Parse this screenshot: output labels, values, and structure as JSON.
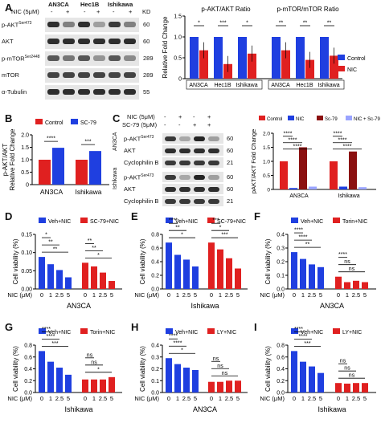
{
  "panels": {
    "A": "A",
    "B": "B",
    "C": "C",
    "D": "D",
    "E": "E",
    "F": "F",
    "G": "G",
    "H": "H",
    "I": "I"
  },
  "colors": {
    "blue": "#1f3fe0",
    "red": "#e02020",
    "dark_red": "#8b1010",
    "blot_bg": "#e6e6e6",
    "band": "#1a1a1a"
  },
  "blotA": {
    "treatment": "NIC (5μM)",
    "signs": [
      "-",
      "+",
      "-",
      "+",
      "-",
      "+"
    ],
    "lines": [
      "AN3CA",
      "Hec1B",
      "Ishikawa"
    ],
    "kd_header": "KD",
    "rows": [
      {
        "label": "p-AKT",
        "sup": "Ser473",
        "kd": "60"
      },
      {
        "label": "AKT",
        "sup": "",
        "kd": "60"
      },
      {
        "label": "p-mTOR",
        "sup": "Ser2448",
        "kd": "289"
      },
      {
        "label": "mTOR",
        "sup": "",
        "kd": "289"
      },
      {
        "label": "α-Tubulin",
        "sup": "",
        "kd": "55"
      }
    ]
  },
  "blotC": {
    "treatments": [
      {
        "label": "NIC (5μM)",
        "signs": [
          "-",
          "+",
          "-",
          "+"
        ]
      },
      {
        "label": "SC-79 (5μM)",
        "signs": [
          "-",
          "-",
          "+",
          "+"
        ]
      }
    ],
    "groups": [
      {
        "line": "AN3CA",
        "rows": [
          {
            "label": "p-AKT",
            "sup": "Ser473",
            "kd": "60"
          },
          {
            "label": "AKT",
            "sup": "",
            "kd": "60"
          },
          {
            "label": "Cyclophilin B",
            "sup": "",
            "kd": "21"
          }
        ]
      },
      {
        "line": "Ishikawa",
        "rows": [
          {
            "label": "p-AKT",
            "sup": "Ser473",
            "kd": "60"
          },
          {
            "label": "AKT",
            "sup": "",
            "kd": "60"
          },
          {
            "label": "Cyclophilin B",
            "sup": "",
            "kd": "21"
          }
        ]
      }
    ]
  },
  "chart_data": [
    {
      "id": "A-right",
      "type": "bar",
      "ylabel": "Relative Fold Change",
      "ylim": [
        0,
        1.5
      ],
      "yticks": [
        "0",
        "0.5",
        "1.0",
        "1.5"
      ],
      "groups": [
        {
          "title": "p-AKT/AKT Ratio",
          "categories": [
            "AN3CA",
            "Hec1B",
            "Ishikawa"
          ],
          "control": [
            1,
            1,
            1
          ],
          "nic": [
            0.68,
            0.35,
            0.6
          ],
          "stars": [
            "*",
            "***",
            "*"
          ]
        },
        {
          "title": "p-mTOR/mTOR Ratio",
          "categories": [
            "AN3CA",
            "Hec1B",
            "Ishikawa"
          ],
          "control": [
            1,
            1,
            1
          ],
          "nic": [
            0.68,
            0.45,
            0.55
          ],
          "stars": [
            "**",
            "**",
            "**"
          ]
        }
      ],
      "series": [
        {
          "name": "Control"
        },
        {
          "name": "NIC"
        }
      ]
    },
    {
      "id": "B",
      "type": "bar",
      "ylabel": "p-AKT/AKT\nRelative Fold Change",
      "ylim": [
        0,
        2.0
      ],
      "yticks": [
        "0",
        "0.5",
        "1.0",
        "1.5",
        "2.0"
      ],
      "categories": [
        "AN3CA",
        "Ishikawa"
      ],
      "series": [
        {
          "name": "Control",
          "values": [
            1.0,
            1.0
          ]
        },
        {
          "name": "SC-79",
          "values": [
            1.48,
            1.35
          ]
        }
      ],
      "stars": [
        "****",
        "***"
      ]
    },
    {
      "id": "C-right",
      "type": "bar",
      "ylabel": "pAKT/AKT Fold Change",
      "ylim": [
        0,
        2.0
      ],
      "yticks": [
        "0",
        "0.5",
        "1.0",
        "1.5",
        "2.0"
      ],
      "categories": [
        "AN3CA",
        "Ishikawa"
      ],
      "series": [
        {
          "name": "Control",
          "values": [
            1.0,
            1.0
          ]
        },
        {
          "name": "NIC",
          "values": [
            0.05,
            0.1
          ]
        },
        {
          "name": "Sc-79",
          "values": [
            1.5,
            1.35
          ]
        },
        {
          "name": "NIC + Sc-79",
          "values": [
            0.1,
            0.08
          ]
        }
      ],
      "stars": [
        [
          "****",
          "****",
          "****"
        ],
        [
          "****",
          "****",
          "****"
        ]
      ]
    },
    {
      "id": "D",
      "type": "bar",
      "ylabel": "Cell viability (%)",
      "ylim": [
        0,
        0.15
      ],
      "yticks": [
        "0.00",
        "0.05",
        "0.10",
        "0.15"
      ],
      "xlabel": "NIC (μM)",
      "xticks": [
        "0",
        "1",
        "2.5",
        "5"
      ],
      "group_label": "AN3CA",
      "series": [
        {
          "name": "Veh+NIC",
          "values": [
            0.088,
            0.068,
            0.052,
            0.032
          ]
        },
        {
          "name": "SC-79+NIC",
          "values": [
            0.072,
            0.062,
            0.045,
            0.022
          ]
        }
      ],
      "stars": [
        [
          "*",
          "**",
          "**"
        ],
        [
          "**",
          "**",
          "*"
        ]
      ]
    },
    {
      "id": "E",
      "type": "bar",
      "ylabel": "Cell viability (%)",
      "ylim": [
        0,
        0.8
      ],
      "yticks": [
        "0.0",
        "0.2",
        "0.4",
        "0.6",
        "0.8"
      ],
      "xlabel": "NIC (μM)",
      "xticks": [
        "0",
        "1",
        "2.5",
        "5"
      ],
      "group_label": "Ishikawa",
      "series": [
        {
          "name": "Veh+NIC",
          "values": [
            0.68,
            0.5,
            0.43,
            0.33
          ]
        },
        {
          "name": "SC-79+NIC",
          "values": [
            0.68,
            0.58,
            0.45,
            0.3
          ]
        }
      ],
      "stars": [
        [
          "****",
          "**",
          "*"
        ],
        [
          "***",
          "*",
          "***"
        ]
      ]
    },
    {
      "id": "F",
      "type": "bar",
      "ylabel": "Cell viability (%)",
      "ylim": [
        0,
        0.4
      ],
      "yticks": [
        "0.0",
        "0.1",
        "0.2",
        "0.3",
        "0.4"
      ],
      "xlabel": "NIC (μM)",
      "xticks": [
        "0",
        "1",
        "2.5",
        "5"
      ],
      "group_label": "AN3CA",
      "series": [
        {
          "name": "Veh+NIC",
          "values": [
            0.27,
            0.22,
            0.18,
            0.16
          ]
        },
        {
          "name": "Torin+NIC",
          "values": [
            0.09,
            0.05,
            0.06,
            0.05
          ]
        }
      ],
      "stars": [
        [
          "****",
          "****",
          "**"
        ],
        [
          "****",
          "ns",
          "ns"
        ]
      ]
    },
    {
      "id": "G",
      "type": "bar",
      "ylabel": "Cell viability (%)",
      "ylim": [
        0,
        0.8
      ],
      "yticks": [
        "0.0",
        "0.2",
        "0.4",
        "0.6",
        "0.8"
      ],
      "xlabel": "NIC (μM)",
      "xticks": [
        "0",
        "1",
        "2.5",
        "5"
      ],
      "group_label": "Ishikawa",
      "series": [
        {
          "name": "Veh+NIC",
          "values": [
            0.7,
            0.52,
            0.42,
            0.3
          ]
        },
        {
          "name": "Torin+NIC",
          "values": [
            0.22,
            0.22,
            0.22,
            0.26
          ]
        }
      ],
      "stars": [
        [
          "****",
          "****",
          "***"
        ],
        [
          "ns",
          "ns",
          "*"
        ]
      ]
    },
    {
      "id": "H",
      "type": "bar",
      "ylabel": "Cell viability (%)",
      "ylim": [
        0,
        0.4
      ],
      "yticks": [
        "0.0",
        "0.1",
        "0.2",
        "0.3",
        "0.4"
      ],
      "xlabel": "NIC (μM)",
      "xticks": [
        "0",
        "1",
        "2.5",
        "5"
      ],
      "group_label": "AN3CA",
      "series": [
        {
          "name": "Veh+NIC",
          "values": [
            0.29,
            0.24,
            0.21,
            0.19
          ]
        },
        {
          "name": "LY+NIC",
          "values": [
            0.09,
            0.09,
            0.1,
            0.1
          ]
        }
      ],
      "stars": [
        [
          "****",
          "****",
          "*"
        ],
        [
          "ns",
          "ns",
          "ns"
        ]
      ]
    },
    {
      "id": "I",
      "type": "bar",
      "ylabel": "Cell viability (%)",
      "ylim": [
        0,
        0.8
      ],
      "yticks": [
        "0.0",
        "0.2",
        "0.4",
        "0.6",
        "0.8"
      ],
      "xlabel": "NIC (μM)",
      "xticks": [
        "0",
        "1",
        "2.5",
        "5"
      ],
      "group_label": "Ishikawa",
      "series": [
        {
          "name": "Veh+NIC",
          "values": [
            0.7,
            0.52,
            0.44,
            0.33
          ]
        },
        {
          "name": "LY+NIC",
          "values": [
            0.16,
            0.15,
            0.16,
            0.16
          ]
        }
      ],
      "stars": [
        [
          "****",
          "****",
          "***"
        ],
        [
          "ns",
          "ns",
          "ns"
        ]
      ]
    }
  ]
}
